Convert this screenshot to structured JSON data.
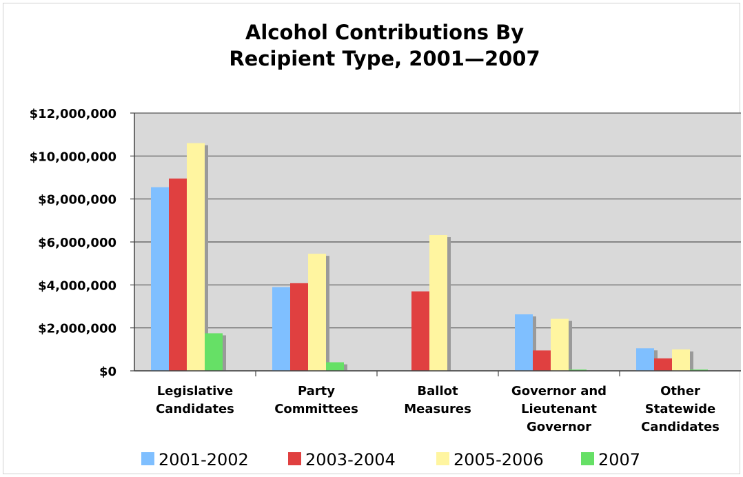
{
  "chart_data": {
    "type": "bar",
    "title_lines": [
      "Alcohol Contributions By",
      "Recipient Type, 2001—2007"
    ],
    "categories": [
      [
        "Legislative",
        "Candidates"
      ],
      [
        "Party",
        "Committees"
      ],
      [
        "Ballot",
        "Measures"
      ],
      [
        "Governor and",
        "Lieutenant",
        "Governor"
      ],
      [
        "Other",
        "Statewide",
        "Candidates"
      ]
    ],
    "series": [
      {
        "name": "2001-2002",
        "color": "#7fbfff",
        "values": [
          8550000,
          3900000,
          0,
          2630000,
          1050000
        ]
      },
      {
        "name": "2003-2004",
        "color": "#e04040",
        "values": [
          8950000,
          4080000,
          3700000,
          950000,
          580000
        ]
      },
      {
        "name": "2005-2006",
        "color": "#fff5a0",
        "values": [
          10600000,
          5450000,
          6320000,
          2420000,
          1000000
        ]
      },
      {
        "name": "2007",
        "color": "#66e066",
        "values": [
          1750000,
          400000,
          0,
          60000,
          60000
        ]
      }
    ],
    "ylim": [
      0,
      12000000
    ],
    "yticks": [
      0,
      2000000,
      4000000,
      6000000,
      8000000,
      10000000,
      12000000
    ],
    "ytick_labels": [
      "$0",
      "$2,000,000",
      "$4,000,000",
      "$6,000,000",
      "$8,000,000",
      "$10,000,000",
      "$12,000,000"
    ],
    "grid": true,
    "legend_position": "bottom",
    "plot_background": "#d9d9d9"
  }
}
